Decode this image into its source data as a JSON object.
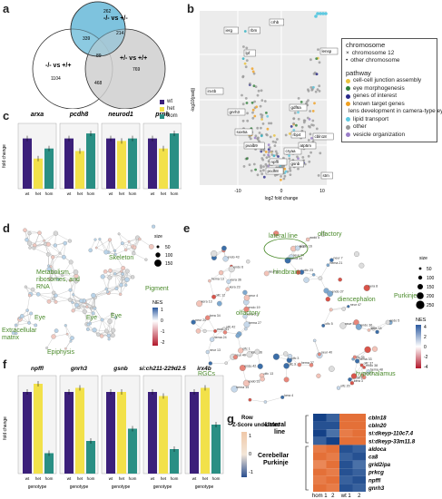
{
  "panels": {
    "a": "a",
    "b": "b",
    "c": "c",
    "d": "d",
    "e": "e",
    "f": "f",
    "g": "g"
  },
  "venn": {
    "sets": [
      "-/- vs +/-",
      "-/- vs +/+",
      "+/- vs +/+"
    ],
    "counts": {
      "top_only": "262",
      "top_left": "339",
      "top_right": "214",
      "center": "89",
      "left_only": "1104",
      "right_only": "769",
      "bottom_mid": "468"
    }
  },
  "volcano": {
    "xlabel": "log2 fold change",
    "ylabel": "-log10(padj)",
    "xticks": [
      "-10",
      "0",
      "10"
    ],
    "chromosome_legend": {
      "title": "chromosome",
      "items": [
        {
          "label": "chromosome 12",
          "marker": "×"
        },
        {
          "label": "other chromosome",
          "marker": "•"
        }
      ]
    },
    "pathway_legend": {
      "title": "pathway",
      "items": [
        {
          "label": "cell-cell junction assembly",
          "color": "#e9c23b"
        },
        {
          "label": "eye morphogenesis",
          "color": "#2f7f3a"
        },
        {
          "label": "genes of interest",
          "color": "#2a2a8a"
        },
        {
          "label": "known target genes",
          "color": "#f0a020"
        },
        {
          "label": "lens development in camera-type eye",
          "color": "#2ab0c0"
        },
        {
          "label": "lipid transport",
          "color": "#5ec9e0"
        },
        {
          "label": "other",
          "color": "#999999"
        },
        {
          "label": "vesicle organization",
          "color": "#9b7fc9"
        }
      ]
    },
    "gene_labels": [
      "ierg",
      "rbm",
      "crhb",
      "lpf",
      "irx4b",
      "gnrh3",
      "sox5a",
      "pvalb9",
      "npffl",
      "pcdh8",
      "gsnb",
      "cryaa",
      "atp5m",
      "rbp4",
      "cbln18",
      "lensp",
      "stm",
      "gdf6a"
    ]
  },
  "genotype_legend": {
    "items": [
      {
        "label": "wt",
        "color": "#3b1f7a"
      },
      {
        "label": "het",
        "color": "#f2e14a"
      },
      {
        "label": "hom",
        "color": "#2a8f84"
      }
    ]
  },
  "panel_c": {
    "ylabel": "fold change",
    "genes": [
      "arxa",
      "pcdh8",
      "neurod1",
      "prph"
    ],
    "xcats": [
      "wt",
      "het",
      "hom"
    ],
    "chart_data": {
      "type": "bar",
      "categories": [
        "wt",
        "het",
        "hom"
      ],
      "series": [
        {
          "name": "arxa",
          "values": [
            1.0,
            0.6,
            0.8
          ]
        },
        {
          "name": "pcdh8",
          "values": [
            1.0,
            0.75,
            1.1
          ]
        },
        {
          "name": "neurod1",
          "values": [
            1.0,
            0.95,
            1.0
          ]
        },
        {
          "name": "prph",
          "values": [
            1.0,
            0.8,
            1.1
          ]
        }
      ]
    }
  },
  "panel_d": {
    "labels": [
      "Skeleton",
      "Metabolism, ribosomes, and RNA",
      "Eye",
      "Eye",
      "Eye",
      "Pigment",
      "Extracellular matrix",
      "Epiphysis"
    ],
    "size_legend": {
      "title": "size",
      "items": [
        "50",
        "100",
        "150"
      ]
    }
  },
  "panel_e": {
    "labels": [
      "olfactory",
      "lateral line",
      "hindbrain",
      "olfactory",
      "diencephalon",
      "Purkinje",
      "RGCs",
      "hypothalamus"
    ],
    "size_legend": {
      "title": "size",
      "items": [
        "50",
        "100",
        "150",
        "200",
        "250"
      ]
    },
    "nes": {
      "title": "NES",
      "ticks": [
        "4",
        "2",
        "0",
        "-2",
        "-4"
      ]
    }
  },
  "panel_d_nes": {
    "title": "NES",
    "ticks": [
      "1",
      "0",
      "-1",
      "-2"
    ]
  },
  "panel_f": {
    "ylabel": "fold change",
    "xlabel": "genotype",
    "genes": [
      "npffl",
      "gnrh3",
      "gsnb",
      "si:ch211-229d2.5",
      "irx4b"
    ],
    "xcats": [
      "wt",
      "het",
      "hom"
    ],
    "chart_data": {
      "type": "bar",
      "categories": [
        "wt",
        "het",
        "hom"
      ],
      "series": [
        {
          "name": "npffl",
          "values": [
            1.0,
            1.1,
            0.25
          ]
        },
        {
          "name": "gnrh3",
          "values": [
            1.0,
            1.05,
            0.4
          ]
        },
        {
          "name": "gsnb",
          "values": [
            1.0,
            1.0,
            0.55
          ]
        },
        {
          "name": "si:ch211-229d2.5",
          "values": [
            1.0,
            0.95,
            0.3
          ]
        },
        {
          "name": "irx4b",
          "values": [
            1.0,
            1.05,
            0.6
          ]
        }
      ]
    }
  },
  "heatmap": {
    "scale_title": "Row Z-Score",
    "scale_ticks": [
      "1",
      "0",
      "-1"
    ],
    "groups": [
      "Lateral line",
      "Cerebellar Purkinje"
    ],
    "genes": [
      "cbln18",
      "cbln20",
      "si:dkeyp-110c7.4",
      "si:dkeyp-33m11.8",
      "aldoca",
      "ca8",
      "grid2ipa",
      "prkcg",
      "npffl",
      "gnrh3"
    ],
    "columns": [
      "hom 1",
      "2",
      "wt 1",
      "2"
    ],
    "chart_data": {
      "type": "heatmap",
      "rows": [
        "cbln18",
        "cbln20",
        "si:dkeyp-110c7.4",
        "si:dkeyp-33m11.8",
        "aldoca",
        "ca8",
        "grid2ipa",
        "prkcg",
        "npffl",
        "gnrh3"
      ],
      "columns": [
        "hom 1",
        "hom 2",
        "wt 1",
        "wt 2"
      ],
      "values": [
        [
          -1.0,
          -0.8,
          0.9,
          0.9
        ],
        [
          -0.9,
          -0.9,
          0.9,
          0.9
        ],
        [
          -1.0,
          -0.7,
          0.8,
          0.9
        ],
        [
          -0.8,
          -1.0,
          0.9,
          0.9
        ],
        [
          0.8,
          0.9,
          -0.9,
          -0.8
        ],
        [
          0.9,
          0.8,
          -0.8,
          -0.9
        ],
        [
          0.7,
          0.9,
          -0.9,
          -0.7
        ],
        [
          0.9,
          0.8,
          -0.9,
          -0.8
        ],
        [
          0.8,
          0.9,
          -0.8,
          -0.9
        ],
        [
          0.9,
          0.8,
          -0.9,
          -0.8
        ]
      ]
    }
  }
}
